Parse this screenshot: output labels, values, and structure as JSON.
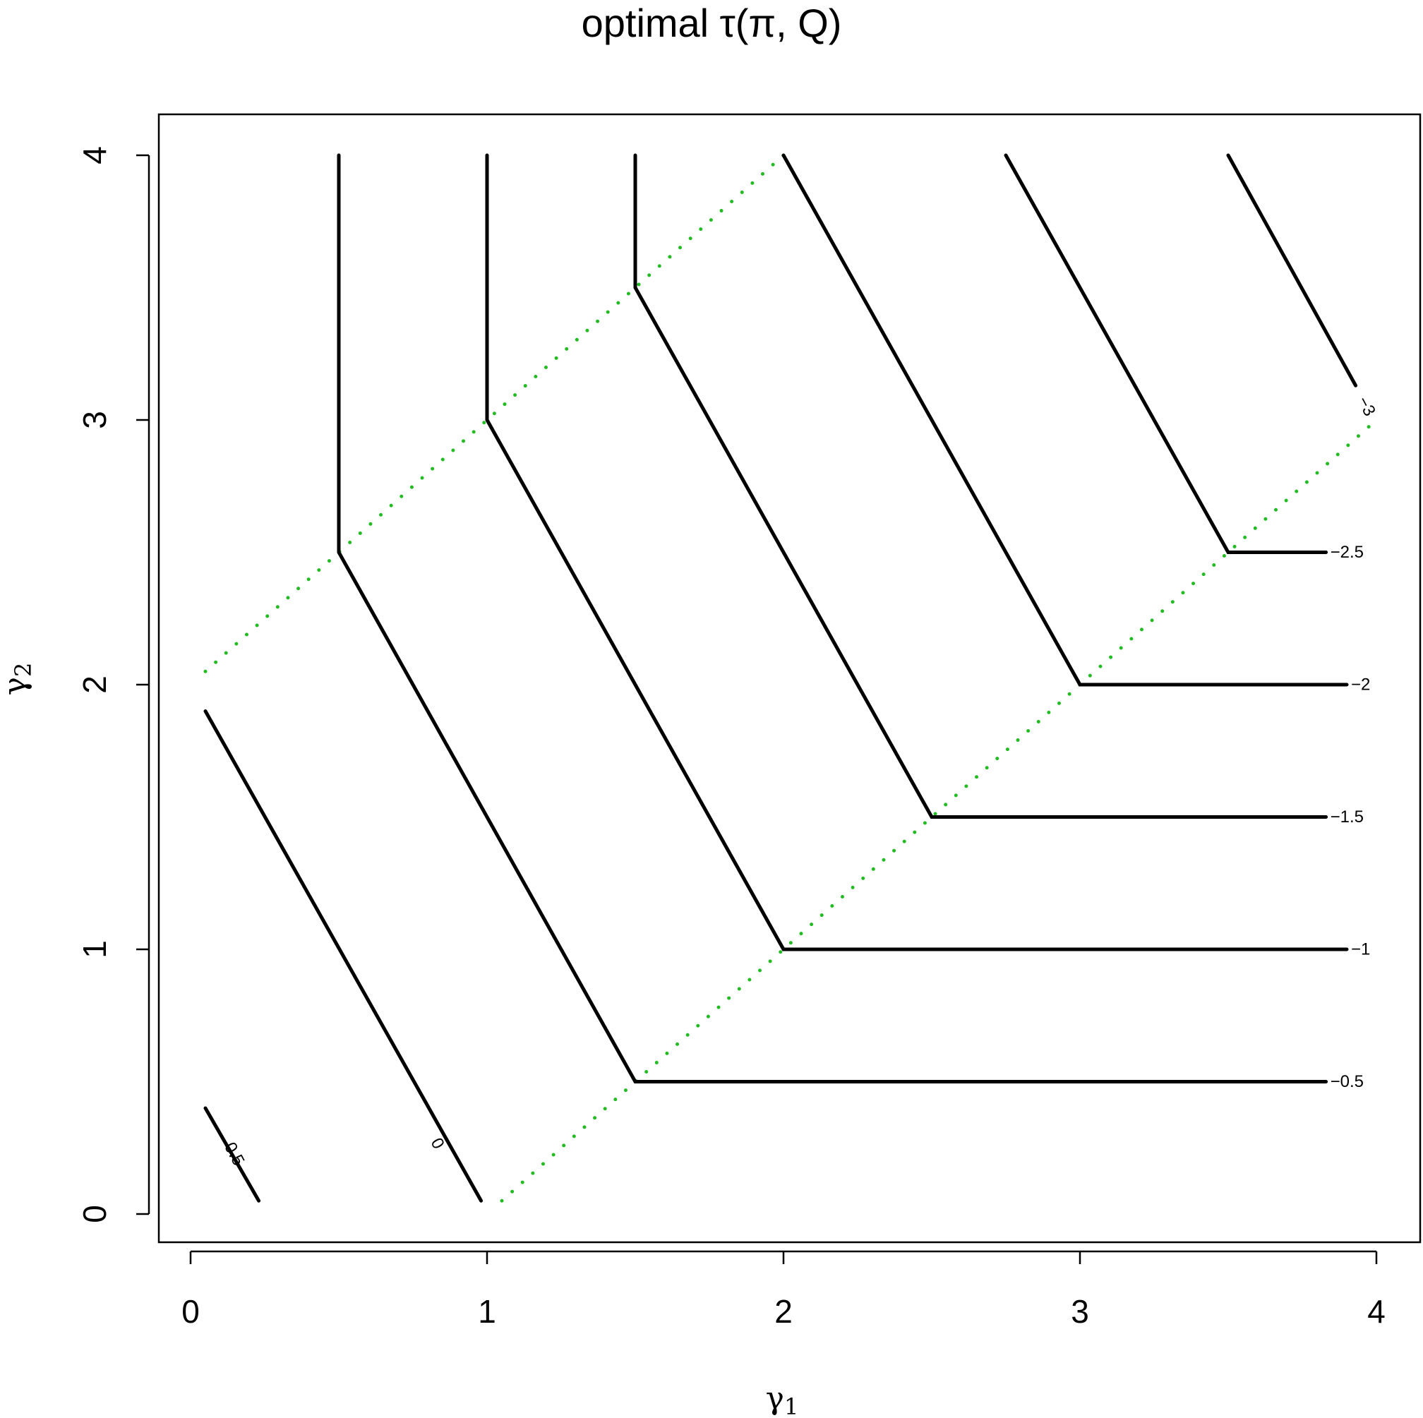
{
  "chart_data": {
    "type": "contour",
    "title": "optimal τ(π, Q)",
    "xlabel": "γ",
    "xlabel_sub": "1",
    "ylabel": "γ",
    "ylabel_sub": "2",
    "xlim": [
      0,
      4
    ],
    "ylim": [
      0,
      4
    ],
    "xticks": [
      "0",
      "1",
      "2",
      "3",
      "4"
    ],
    "yticks": [
      "0",
      "1",
      "2",
      "3",
      "4"
    ],
    "grid": false,
    "contours": [
      {
        "level": "0.5",
        "color": "#000000",
        "points": [
          [
            0.05,
            0.4
          ],
          [
            0.23,
            0.05
          ]
        ]
      },
      {
        "level": "0",
        "color": "#000000",
        "points": [
          [
            0.05,
            1.9
          ],
          [
            0.98,
            0.05
          ]
        ]
      },
      {
        "level": "−0.5",
        "color": "#000000",
        "points": [
          [
            0.5,
            4
          ],
          [
            0.5,
            2.5
          ],
          [
            1.5,
            0.5
          ],
          [
            3.83,
            0.5
          ]
        ]
      },
      {
        "level": "−1",
        "color": "#000000",
        "points": [
          [
            1,
            4
          ],
          [
            1,
            3
          ],
          [
            2,
            1
          ],
          [
            3.9,
            1
          ]
        ]
      },
      {
        "level": "−1.5",
        "color": "#000000",
        "points": [
          [
            1.5,
            4
          ],
          [
            1.5,
            3.5
          ],
          [
            2.5,
            1.5
          ],
          [
            3.83,
            1.5
          ]
        ]
      },
      {
        "level": "−2",
        "color": "#000000",
        "points": [
          [
            2,
            4
          ],
          [
            3,
            2
          ],
          [
            3.9,
            2
          ]
        ]
      },
      {
        "level": "−2.5",
        "color": "#000000",
        "points": [
          [
            2.75,
            4
          ],
          [
            3.5,
            2.5
          ],
          [
            3.83,
            2.5
          ]
        ]
      },
      {
        "level": "−3",
        "color": "#000000",
        "points": [
          [
            3.5,
            4
          ],
          [
            3.93,
            3.13
          ]
        ]
      }
    ],
    "boundary": {
      "color": "#22bb22",
      "style": "dotted",
      "lines": [
        [
          [
            0.05,
            2.05
          ],
          [
            2,
            4
          ]
        ],
        [
          [
            1.05,
            0.05
          ],
          [
            4,
            3
          ]
        ]
      ]
    }
  }
}
